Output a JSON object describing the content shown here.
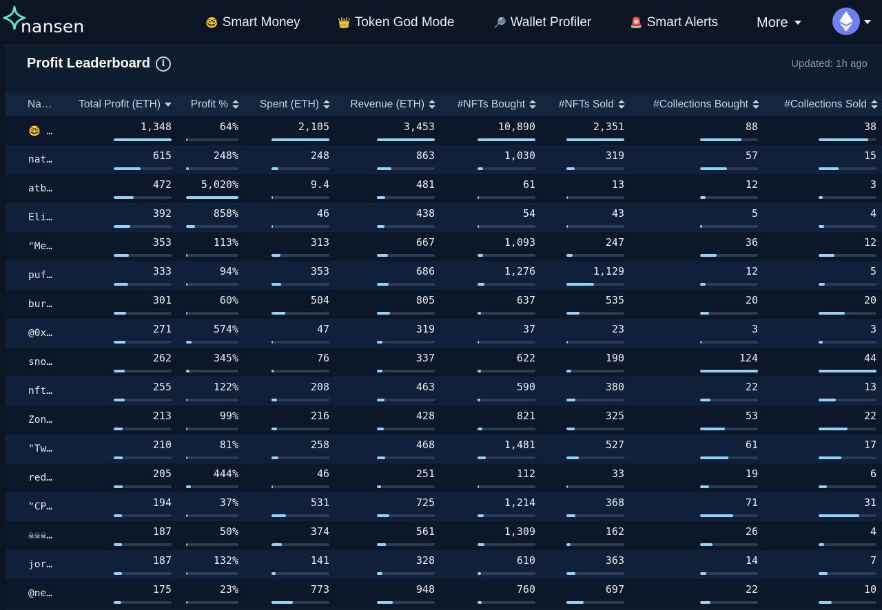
{
  "nav": {
    "logo_text": "nansen",
    "items": [
      {
        "emoji": "🤓",
        "label": "Smart Money"
      },
      {
        "emoji": "👑",
        "label": "Token God Mode"
      },
      {
        "emoji": "🔎",
        "label": "Wallet Profiler"
      },
      {
        "emoji": "🚨",
        "label": "Smart Alerts"
      }
    ],
    "more_label": "More",
    "avatar_icon": "ethereum-icon"
  },
  "panel": {
    "title": "Profit Leaderboard",
    "updated": "Updated: 1h ago"
  },
  "colors": {
    "background": "#0b1524",
    "panel": "#0e1c2e",
    "header_row": "#14263d",
    "bar_fill": "#8fd4ff",
    "bar_track": "#2b3b52",
    "logo_accent": "#5fe0c0"
  },
  "table": {
    "columns": [
      {
        "label": "Na…",
        "sort": "none"
      },
      {
        "label": "Total Profit (ETH)",
        "sort": "desc"
      },
      {
        "label": "Profit %",
        "sort": "both"
      },
      {
        "label": "Spent (ETH)",
        "sort": "both"
      },
      {
        "label": "Revenue (ETH)",
        "sort": "both"
      },
      {
        "label": "#NFTs Bought",
        "sort": "both"
      },
      {
        "label": "#NFTs Sold",
        "sort": "both"
      },
      {
        "label": "#Collections Bought",
        "sort": "both"
      },
      {
        "label": "#Collections Sold",
        "sort": "both"
      }
    ],
    "rows": [
      {
        "name": "🤓 …",
        "cells": [
          [
            "1,348",
            1.0
          ],
          [
            "64%",
            0.01
          ],
          [
            "2,105",
            1.0
          ],
          [
            "3,453",
            1.0
          ],
          [
            "10,890",
            1.0
          ],
          [
            "2,351",
            1.0
          ],
          [
            "88",
            0.71
          ],
          [
            "38",
            0.86
          ]
        ]
      },
      {
        "name": "nat…",
        "cells": [
          [
            "615",
            0.46
          ],
          [
            "248%",
            0.05
          ],
          [
            "248",
            0.12
          ],
          [
            "863",
            0.25
          ],
          [
            "1,030",
            0.09
          ],
          [
            "319",
            0.14
          ],
          [
            "57",
            0.46
          ],
          [
            "15",
            0.34
          ]
        ]
      },
      {
        "name": "atb…",
        "cells": [
          [
            "472",
            0.35
          ],
          [
            "5,020%",
            1.0
          ],
          [
            "9.4",
            0.01
          ],
          [
            "481",
            0.14
          ],
          [
            "61",
            0.01
          ],
          [
            "13",
            0.01
          ],
          [
            "12",
            0.1
          ],
          [
            "3",
            0.07
          ]
        ]
      },
      {
        "name": "Eli…",
        "cells": [
          [
            "392",
            0.29
          ],
          [
            "858%",
            0.17
          ],
          [
            "46",
            0.02
          ],
          [
            "438",
            0.13
          ],
          [
            "54",
            0.01
          ],
          [
            "43",
            0.02
          ],
          [
            "5",
            0.04
          ],
          [
            "4",
            0.09
          ]
        ]
      },
      {
        "name": "\"Me…",
        "cells": [
          [
            "353",
            0.26
          ],
          [
            "113%",
            0.02
          ],
          [
            "313",
            0.15
          ],
          [
            "667",
            0.19
          ],
          [
            "1,093",
            0.1
          ],
          [
            "247",
            0.11
          ],
          [
            "36",
            0.29
          ],
          [
            "12",
            0.27
          ]
        ]
      },
      {
        "name": "puf…",
        "cells": [
          [
            "333",
            0.25
          ],
          [
            "94%",
            0.02
          ],
          [
            "353",
            0.17
          ],
          [
            "686",
            0.2
          ],
          [
            "1,276",
            0.12
          ],
          [
            "1,129",
            0.48
          ],
          [
            "12",
            0.1
          ],
          [
            "5",
            0.11
          ]
        ]
      },
      {
        "name": "bur…",
        "cells": [
          [
            "301",
            0.22
          ],
          [
            "60%",
            0.01
          ],
          [
            "504",
            0.24
          ],
          [
            "805",
            0.23
          ],
          [
            "637",
            0.06
          ],
          [
            "535",
            0.23
          ],
          [
            "20",
            0.16
          ],
          [
            "20",
            0.45
          ]
        ]
      },
      {
        "name": "@0x…",
        "cells": [
          [
            "271",
            0.2
          ],
          [
            "574%",
            0.11
          ],
          [
            "47",
            0.02
          ],
          [
            "319",
            0.09
          ],
          [
            "37",
            0.01
          ],
          [
            "23",
            0.01
          ],
          [
            "3",
            0.02
          ],
          [
            "3",
            0.07
          ]
        ]
      },
      {
        "name": "sno…",
        "cells": [
          [
            "262",
            0.19
          ],
          [
            "345%",
            0.07
          ],
          [
            "76",
            0.04
          ],
          [
            "337",
            0.1
          ],
          [
            "622",
            0.06
          ],
          [
            "190",
            0.08
          ],
          [
            "124",
            1.0
          ],
          [
            "44",
            1.0
          ]
        ]
      },
      {
        "name": "nft…",
        "cells": [
          [
            "255",
            0.19
          ],
          [
            "122%",
            0.02
          ],
          [
            "208",
            0.1
          ],
          [
            "463",
            0.13
          ],
          [
            "590",
            0.05
          ],
          [
            "380",
            0.16
          ],
          [
            "22",
            0.18
          ],
          [
            "13",
            0.3
          ]
        ]
      },
      {
        "name": "Zon…",
        "cells": [
          [
            "213",
            0.16
          ],
          [
            "99%",
            0.02
          ],
          [
            "216",
            0.1
          ],
          [
            "428",
            0.12
          ],
          [
            "821",
            0.08
          ],
          [
            "325",
            0.14
          ],
          [
            "53",
            0.43
          ],
          [
            "22",
            0.5
          ]
        ]
      },
      {
        "name": "\"Tw…",
        "cells": [
          [
            "210",
            0.16
          ],
          [
            "81%",
            0.02
          ],
          [
            "258",
            0.12
          ],
          [
            "468",
            0.14
          ],
          [
            "1,481",
            0.14
          ],
          [
            "527",
            0.22
          ],
          [
            "61",
            0.49
          ],
          [
            "17",
            0.39
          ]
        ]
      },
      {
        "name": "red…",
        "cells": [
          [
            "205",
            0.15
          ],
          [
            "444%",
            0.09
          ],
          [
            "46",
            0.02
          ],
          [
            "251",
            0.07
          ],
          [
            "112",
            0.01
          ],
          [
            "33",
            0.01
          ],
          [
            "19",
            0.15
          ],
          [
            "6",
            0.14
          ]
        ]
      },
      {
        "name": "\"CP…",
        "cells": [
          [
            "194",
            0.14
          ],
          [
            "37%",
            0.01
          ],
          [
            "531",
            0.25
          ],
          [
            "725",
            0.21
          ],
          [
            "1,214",
            0.11
          ],
          [
            "368",
            0.16
          ],
          [
            "71",
            0.57
          ],
          [
            "31",
            0.7
          ]
        ]
      },
      {
        "name": "☠☠☠…",
        "cells": [
          [
            "187",
            0.14
          ],
          [
            "50%",
            0.01
          ],
          [
            "374",
            0.18
          ],
          [
            "561",
            0.16
          ],
          [
            "1,309",
            0.12
          ],
          [
            "162",
            0.07
          ],
          [
            "26",
            0.21
          ],
          [
            "4",
            0.09
          ]
        ]
      },
      {
        "name": "jor…",
        "cells": [
          [
            "187",
            0.14
          ],
          [
            "132%",
            0.03
          ],
          [
            "141",
            0.07
          ],
          [
            "328",
            0.09
          ],
          [
            "610",
            0.06
          ],
          [
            "363",
            0.15
          ],
          [
            "14",
            0.11
          ],
          [
            "7",
            0.16
          ]
        ]
      },
      {
        "name": "@ne…",
        "cells": [
          [
            "175",
            0.13
          ],
          [
            "23%",
            0.0
          ],
          [
            "773",
            0.37
          ],
          [
            "948",
            0.27
          ],
          [
            "760",
            0.07
          ],
          [
            "697",
            0.3
          ],
          [
            "22",
            0.18
          ],
          [
            "10",
            0.23
          ]
        ]
      }
    ]
  }
}
